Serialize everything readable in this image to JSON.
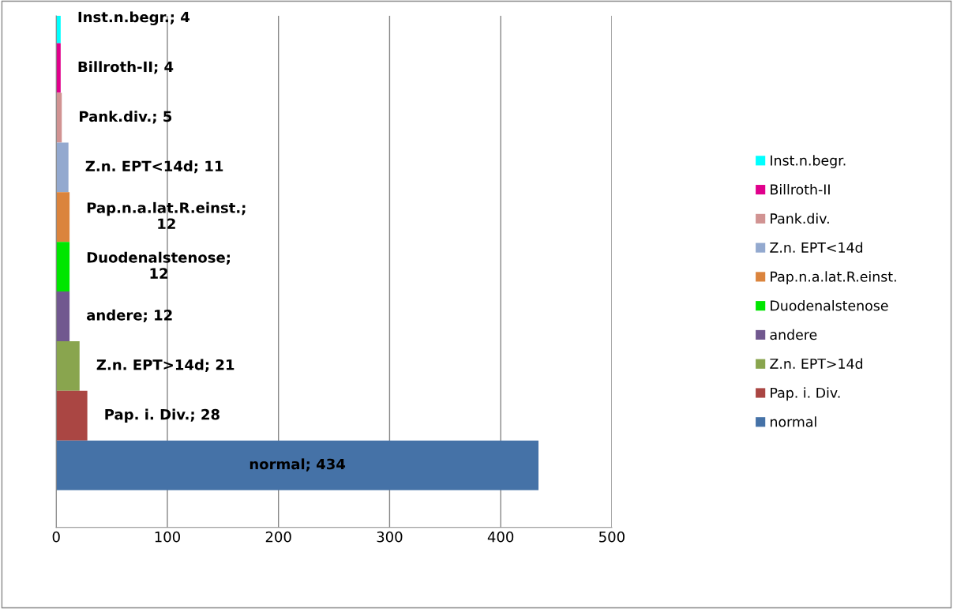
{
  "chart_data": {
    "type": "bar",
    "orientation": "horizontal",
    "categories": [
      null,
      null,
      null,
      null,
      null,
      null,
      null,
      null,
      null,
      null
    ],
    "series": [
      {
        "name": "Inst.n.begr.",
        "color": "#00ffff",
        "values": [
          4,
          null,
          null,
          null,
          null,
          null,
          null,
          null,
          null,
          null
        ],
        "value_labels": [
          "Inst.n.begr.; 4",
          null,
          null,
          null,
          null,
          null,
          null,
          null,
          null,
          null
        ]
      },
      {
        "name": "Billroth-II",
        "color": "#e0008c",
        "values": [
          null,
          4,
          null,
          null,
          null,
          null,
          null,
          null,
          null,
          null
        ],
        "value_labels": [
          null,
          "Billroth-II; 4",
          null,
          null,
          null,
          null,
          null,
          null,
          null,
          null
        ]
      },
      {
        "name": "Pank.div.",
        "color": "#d19392",
        "values": [
          null,
          null,
          5,
          null,
          null,
          null,
          null,
          null,
          null,
          null
        ],
        "value_labels": [
          null,
          null,
          "Pank.div.; 5",
          null,
          null,
          null,
          null,
          null,
          null,
          null
        ]
      },
      {
        "name": "Z.n. EPT<14d",
        "color": "#93a9cf",
        "values": [
          null,
          null,
          null,
          11,
          null,
          null,
          null,
          null,
          null,
          null
        ],
        "value_labels": [
          null,
          null,
          null,
          "Z.n. EPT<14d; 11",
          null,
          null,
          null,
          null,
          null,
          null
        ]
      },
      {
        "name": "Pap.n.a.lat.R.einst.",
        "color": "#db843d",
        "values": [
          null,
          null,
          null,
          null,
          12,
          null,
          null,
          null,
          null,
          null
        ],
        "value_labels": [
          null,
          null,
          null,
          null,
          "Pap.n.a.lat.R.einst.;\n12",
          null,
          null,
          null,
          null,
          null
        ]
      },
      {
        "name": "Duodenalstenose",
        "color": "#00e600",
        "values": [
          null,
          null,
          null,
          null,
          null,
          12,
          null,
          null,
          null,
          null
        ],
        "value_labels": [
          null,
          null,
          null,
          null,
          null,
          "Duodenalstenose;\n12",
          null,
          null,
          null,
          null
        ]
      },
      {
        "name": "andere",
        "color": "#71588f",
        "values": [
          null,
          null,
          null,
          null,
          null,
          null,
          12,
          null,
          null,
          null
        ],
        "value_labels": [
          null,
          null,
          null,
          null,
          null,
          null,
          "andere; 12",
          null,
          null,
          null
        ]
      },
      {
        "name": "Z.n. EPT>14d",
        "color": "#89a54e",
        "values": [
          null,
          null,
          null,
          null,
          null,
          null,
          null,
          21,
          null,
          null
        ],
        "value_labels": [
          null,
          null,
          null,
          null,
          null,
          null,
          null,
          "Z.n. EPT>14d; 21",
          null,
          null
        ]
      },
      {
        "name": "Pap. i. Div.",
        "color": "#aa4643",
        "values": [
          null,
          null,
          null,
          null,
          null,
          null,
          null,
          null,
          28,
          null
        ],
        "value_labels": [
          null,
          null,
          null,
          null,
          null,
          null,
          null,
          null,
          "Pap. i. Div.; 28",
          null
        ]
      },
      {
        "name": "normal",
        "color": "#4572a7",
        "values": [
          null,
          null,
          null,
          null,
          null,
          null,
          null,
          null,
          null,
          434
        ],
        "value_labels": [
          null,
          null,
          null,
          null,
          null,
          null,
          null,
          null,
          null,
          "normal; 434"
        ]
      }
    ],
    "xlim": [
      0,
      500
    ],
    "xticks": [
      0,
      100,
      200,
      300,
      400,
      500
    ],
    "grid": "x",
    "legend": "right",
    "tick_labels": "x",
    "stacked": true
  }
}
